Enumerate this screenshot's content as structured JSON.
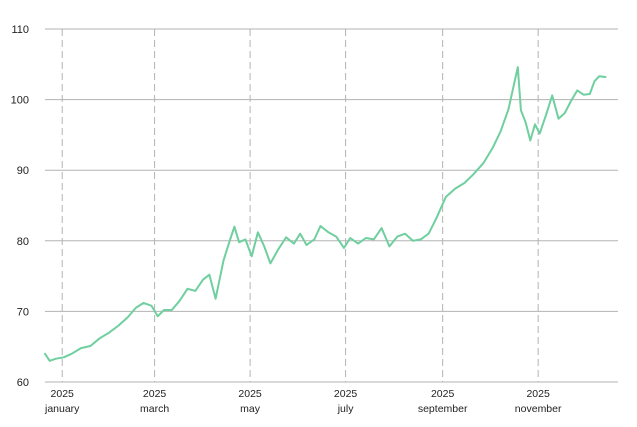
{
  "chart_data": {
    "type": "line",
    "title": "",
    "xlabel": "",
    "ylabel": "",
    "ylim": [
      60,
      110
    ],
    "yticks": [
      60,
      70,
      80,
      90,
      100,
      110
    ],
    "xlim": [
      "2024-12-21",
      "2025-12-22"
    ],
    "xticks": [
      {
        "date": "2025-01-01",
        "year": "2025",
        "month": "january"
      },
      {
        "date": "2025-03-01",
        "year": "2025",
        "month": "march"
      },
      {
        "date": "2025-05-01",
        "year": "2025",
        "month": "may"
      },
      {
        "date": "2025-07-01",
        "year": "2025",
        "month": "july"
      },
      {
        "date": "2025-09-01",
        "year": "2025",
        "month": "september"
      },
      {
        "date": "2025-11-01",
        "year": "2025",
        "month": "november"
      }
    ],
    "grid": {
      "horizontal": "solid",
      "vertical": "dashed"
    },
    "legend": "none",
    "series": [
      {
        "color": "#6fcf9f",
        "points": [
          [
            "2024-12-21",
            64.0
          ],
          [
            "2024-12-24",
            63.0
          ],
          [
            "2024-12-28",
            63.3
          ],
          [
            "2025-01-02",
            63.5
          ],
          [
            "2025-01-07",
            64.0
          ],
          [
            "2025-01-13",
            64.8
          ],
          [
            "2025-01-19",
            65.1
          ],
          [
            "2025-01-25",
            66.2
          ],
          [
            "2025-01-31",
            67.0
          ],
          [
            "2025-02-06",
            68.0
          ],
          [
            "2025-02-12",
            69.2
          ],
          [
            "2025-02-17",
            70.5
          ],
          [
            "2025-02-22",
            71.2
          ],
          [
            "2025-02-27",
            70.8
          ],
          [
            "2025-03-03",
            69.3
          ],
          [
            "2025-03-07",
            70.2
          ],
          [
            "2025-03-12",
            70.2
          ],
          [
            "2025-03-17",
            71.5
          ],
          [
            "2025-03-22",
            73.2
          ],
          [
            "2025-03-27",
            72.9
          ],
          [
            "2025-04-01",
            74.5
          ],
          [
            "2025-04-05",
            75.2
          ],
          [
            "2025-04-09",
            71.8
          ],
          [
            "2025-04-14",
            77.2
          ],
          [
            "2025-04-18",
            80.0
          ],
          [
            "2025-04-21",
            82.0
          ],
          [
            "2025-04-24",
            79.8
          ],
          [
            "2025-04-28",
            80.2
          ],
          [
            "2025-05-02",
            77.8
          ],
          [
            "2025-05-06",
            81.2
          ],
          [
            "2025-05-10",
            79.2
          ],
          [
            "2025-05-14",
            76.8
          ],
          [
            "2025-05-19",
            78.8
          ],
          [
            "2025-05-24",
            80.5
          ],
          [
            "2025-05-29",
            79.6
          ],
          [
            "2025-06-02",
            81.0
          ],
          [
            "2025-06-06",
            79.4
          ],
          [
            "2025-06-11",
            80.2
          ],
          [
            "2025-06-15",
            82.1
          ],
          [
            "2025-06-20",
            81.2
          ],
          [
            "2025-06-25",
            80.6
          ],
          [
            "2025-06-30",
            79.0
          ],
          [
            "2025-07-04",
            80.4
          ],
          [
            "2025-07-09",
            79.6
          ],
          [
            "2025-07-14",
            80.4
          ],
          [
            "2025-07-19",
            80.2
          ],
          [
            "2025-07-24",
            81.8
          ],
          [
            "2025-07-29",
            79.2
          ],
          [
            "2025-08-03",
            80.6
          ],
          [
            "2025-08-08",
            81.0
          ],
          [
            "2025-08-13",
            80.0
          ],
          [
            "2025-08-18",
            80.2
          ],
          [
            "2025-08-23",
            81.0
          ],
          [
            "2025-08-28",
            83.2
          ],
          [
            "2025-09-03",
            86.2
          ],
          [
            "2025-09-09",
            87.4
          ],
          [
            "2025-09-15",
            88.2
          ],
          [
            "2025-09-21",
            89.5
          ],
          [
            "2025-09-27",
            91.0
          ],
          [
            "2025-10-03",
            93.2
          ],
          [
            "2025-10-08",
            95.5
          ],
          [
            "2025-10-13",
            98.6
          ],
          [
            "2025-10-17",
            102.6
          ],
          [
            "2025-10-19",
            104.6
          ],
          [
            "2025-10-21",
            98.5
          ],
          [
            "2025-10-24",
            96.8
          ],
          [
            "2025-10-27",
            94.2
          ],
          [
            "2025-10-30",
            96.5
          ],
          [
            "2025-11-02",
            95.2
          ],
          [
            "2025-11-06",
            97.8
          ],
          [
            "2025-11-10",
            100.6
          ],
          [
            "2025-11-14",
            97.3
          ],
          [
            "2025-11-18",
            98.1
          ],
          [
            "2025-11-22",
            99.8
          ],
          [
            "2025-11-26",
            101.3
          ],
          [
            "2025-11-30",
            100.7
          ],
          [
            "2025-12-04",
            100.8
          ],
          [
            "2025-12-07",
            102.6
          ],
          [
            "2025-12-10",
            103.3
          ],
          [
            "2025-12-14",
            103.2
          ]
        ]
      }
    ]
  }
}
